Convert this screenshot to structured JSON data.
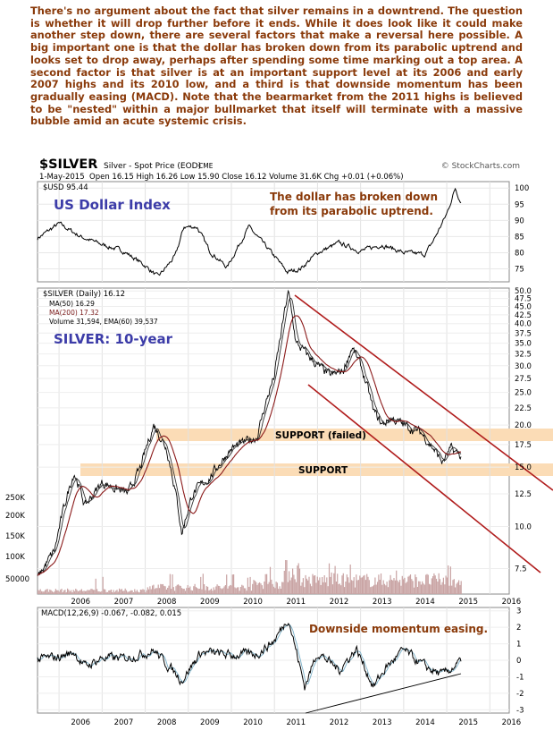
{
  "commentary": "There's no argument about the fact that silver remains in a downtrend. The question is whether it will drop further before it ends. While it does look like it could make another step down, there are several factors that make a reversal here possible. A big important one is that the dollar has broken down from its parabolic uptrend and looks set to drop away, perhaps after spending some time marking out a top area. A second factor is that silver is at an important support level at its 2006 and early 2007 highs and its 2010 low, and a third is that downside momentum has been gradually easing (MACD). Note that the bearmarket from the 2011 highs is believed to be \"nested\" within a major bullmarket that itself will terminate with a massive bubble amid an acute systemic crisis.",
  "header": {
    "symbol": "$SILVER",
    "description": "Silver - Spot Price (EOD)",
    "exchange": "CME",
    "watermark": "© StockCharts.com",
    "date": "1-May-2015",
    "quote": "Open 16.15  High 16.26  Low 15.90  Close 16.12  Volume 31.6K  Chg +0.01 (+0.06%)"
  },
  "chart_data": [
    {
      "type": "line",
      "panel": "dollar",
      "legend": "$USD 95.44",
      "title": "US Dollar Index",
      "annotation": "The dollar has broken down from its parabolic uptrend.",
      "ylim": [
        71,
        102
      ],
      "ytick_labels": [
        "100",
        "95",
        "90",
        "85",
        "80",
        "75"
      ],
      "x": [
        2005.5,
        2006.0,
        2006.5,
        2007.0,
        2007.5,
        2008.0,
        2008.3,
        2008.7,
        2008.9,
        2009.2,
        2009.5,
        2009.9,
        2010.4,
        2010.9,
        2011.3,
        2011.6,
        2012.0,
        2012.5,
        2013.0,
        2013.5,
        2014.0,
        2014.5,
        2014.7,
        2015.0,
        2015.2,
        2015.33
      ],
      "values": [
        84.5,
        89,
        85,
        82.5,
        80.5,
        76,
        72.5,
        79,
        88,
        88,
        80.5,
        75.5,
        88,
        80.5,
        74,
        75,
        80,
        83,
        80.5,
        82.5,
        80,
        79.5,
        84,
        92,
        100,
        95.44
      ]
    },
    {
      "type": "line",
      "panel": "silver",
      "title": "SILVER: 10-year",
      "legend": [
        "$SILVER (Daily) 16.12",
        "MA(50) 16.29",
        "MA(200) 17.32",
        "Volume 31,594, EMA(60) 39,537"
      ],
      "yscale": "log",
      "ylim": [
        6.3,
        51
      ],
      "ytick_labels": [
        "50.0",
        "47.5",
        "45.0",
        "42.5",
        "40.0",
        "37.5",
        "35.0",
        "32.5",
        "30.0",
        "27.5",
        "25.0",
        "22.5",
        "20.0",
        "17.5",
        "15.0",
        "12.5",
        "10.0",
        "7.5"
      ],
      "volume_tick_labels": [
        "250K",
        "200K",
        "150K",
        "100K",
        "50000"
      ],
      "x": [
        2005.5,
        2005.9,
        2006.2,
        2006.35,
        2006.6,
        2007.0,
        2007.3,
        2007.6,
        2007.9,
        2008.2,
        2008.5,
        2008.85,
        2009.1,
        2009.5,
        2010.0,
        2010.4,
        2010.6,
        2011.0,
        2011.15,
        2011.32,
        2011.5,
        2011.8,
        2012.0,
        2012.3,
        2012.6,
        2012.8,
        2013.0,
        2013.3,
        2013.5,
        2013.7,
        2014.0,
        2014.4,
        2014.7,
        2014.9,
        2015.1,
        2015.33
      ],
      "values": [
        7,
        8.5,
        12.5,
        14.5,
        11.5,
        13.5,
        13,
        12.5,
        15,
        20,
        17,
        9.5,
        12.5,
        14,
        17,
        18,
        18.5,
        28,
        37,
        49.5,
        35,
        32,
        30,
        28,
        29,
        34,
        30,
        22,
        20,
        21,
        20,
        19,
        17,
        15.5,
        17,
        16.12
      ],
      "annotations": [
        "SUPPORT (failed)",
        "SUPPORT"
      ]
    },
    {
      "type": "line",
      "panel": "macd",
      "legend": "MACD(12,26,9) -0.067, -0.082, 0.015",
      "annotation": "Downside momentum easing.",
      "ylim": [
        -3.2,
        3.2
      ],
      "ytick_labels": [
        "3",
        "2",
        "1",
        "0",
        "-1",
        "-2",
        "-3"
      ],
      "x": [
        2005.5,
        2006.0,
        2006.35,
        2006.6,
        2007.0,
        2007.5,
        2008.2,
        2008.85,
        2009.3,
        2010.0,
        2010.6,
        2011.0,
        2011.32,
        2011.7,
        2012.0,
        2012.5,
        2012.9,
        2013.3,
        2013.6,
        2014.0,
        2014.5,
        2014.9,
        2015.33
      ],
      "values": [
        0.05,
        0.2,
        0.5,
        -0.4,
        0.15,
        0.1,
        0.6,
        -1.2,
        0.5,
        0.3,
        0.4,
        1.2,
        2.6,
        -1.6,
        0.5,
        -0.6,
        0.7,
        -1.6,
        -0.4,
        0.6,
        -0.4,
        -0.9,
        -0.067
      ]
    }
  ],
  "xaxis_labels": [
    "2006",
    "2007",
    "2008",
    "2009",
    "2010",
    "2011",
    "2012",
    "2013",
    "2014",
    "2015",
    "2016"
  ]
}
